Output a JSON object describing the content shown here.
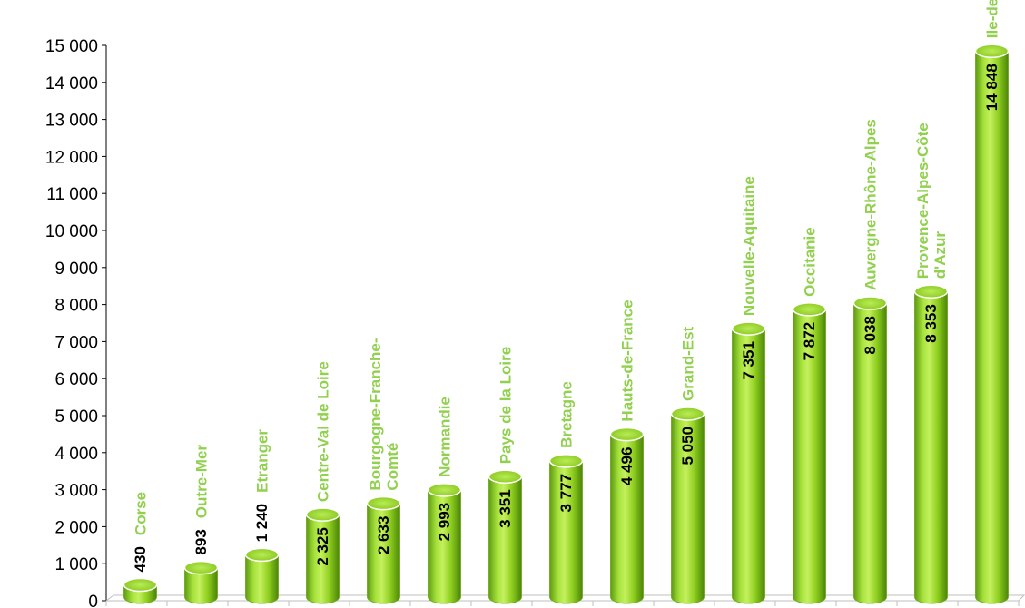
{
  "colors": {
    "bar_light": "#b6ec46",
    "bar_mid": "#8fcf1f",
    "bar_dark": "#4f8a0b",
    "bar_top": "#a4de3a",
    "label_green": "#92d050",
    "axis": "#bfbfbf"
  },
  "chart_data": {
    "type": "bar",
    "title": "",
    "xlabel": "",
    "ylabel": "",
    "ylim": [
      0,
      15000
    ],
    "yticks": [
      "0",
      "1 000",
      "2 000",
      "3 000",
      "4 000",
      "5 000",
      "6 000",
      "7 000",
      "8 000",
      "9 000",
      "10 000",
      "11 000",
      "12 000",
      "13 000",
      "14 000",
      "15 000"
    ],
    "grid": false,
    "legend": "none",
    "categories": [
      [
        "Corse"
      ],
      [
        "Outre-Mer"
      ],
      [
        "Etranger"
      ],
      [
        "Centre-Val de Loire"
      ],
      [
        "Bourgogne-Franche-",
        "Comté"
      ],
      [
        "Normandie"
      ],
      [
        "Pays de la Loire"
      ],
      [
        "Bretagne"
      ],
      [
        "Hauts-de-France"
      ],
      [
        "Grand-Est"
      ],
      [
        "Nouvelle-Aquitaine"
      ],
      [
        "Occitanie"
      ],
      [
        "Auvergne-Rhône-Alpes"
      ],
      [
        "Provence-Alpes-Côte",
        "d'Azur"
      ],
      [
        "Ile-de-France"
      ]
    ],
    "values": [
      430,
      893,
      1240,
      2325,
      2633,
      2993,
      3351,
      3777,
      4496,
      5050,
      7351,
      7872,
      8038,
      8353,
      14848
    ],
    "value_labels": [
      "430",
      "893",
      "1 240",
      "2 325",
      "2 633",
      "2 993",
      "3 351",
      "3 777",
      "4 496",
      "5 050",
      "7 351",
      "7 872",
      "8 038",
      "8 353",
      "14 848"
    ]
  }
}
